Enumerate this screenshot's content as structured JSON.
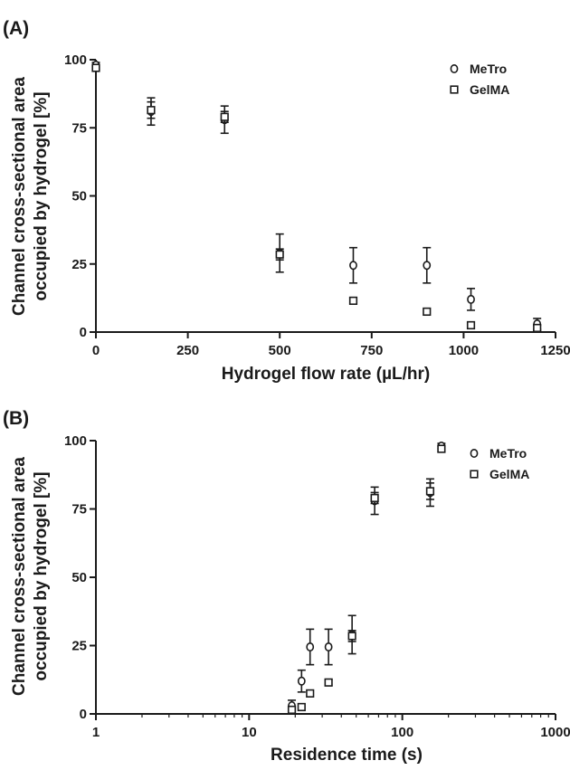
{
  "chart_data": [
    {
      "panel_label": "(A)",
      "type": "scatter",
      "xscale": "linear",
      "xlim": [
        0,
        1250
      ],
      "ylim": [
        0,
        100
      ],
      "xticks": [
        0,
        250,
        500,
        750,
        1000,
        1250
      ],
      "yticks": [
        0,
        25,
        50,
        75,
        100
      ],
      "xlabel": "Hydrogel flow rate (µL/hr)",
      "ylabel": [
        "Channel cross-sectional area",
        "occupied by hydrogel [%]"
      ],
      "legend_position": "top-right",
      "series": [
        {
          "name": "MeTro",
          "marker": "circle",
          "points": [
            {
              "x": 0,
              "y": 98,
              "err": 1
            },
            {
              "x": 150,
              "y": 81,
              "err": 5
            },
            {
              "x": 350,
              "y": 78,
              "err": 5
            },
            {
              "x": 500,
              "y": 29,
              "err": 7
            },
            {
              "x": 700,
              "y": 24.5,
              "err": 6.5
            },
            {
              "x": 900,
              "y": 24.5,
              "err": 6.5
            },
            {
              "x": 1020,
              "y": 12,
              "err": 4
            },
            {
              "x": 1200,
              "y": 3,
              "err": 2
            }
          ]
        },
        {
          "name": "GelMA",
          "marker": "square",
          "points": [
            {
              "x": 0,
              "y": 97,
              "err": 1
            },
            {
              "x": 150,
              "y": 81.5,
              "err": 3
            },
            {
              "x": 350,
              "y": 79,
              "err": 2
            },
            {
              "x": 500,
              "y": 28.5,
              "err": 2
            },
            {
              "x": 700,
              "y": 11.5,
              "err": 1
            },
            {
              "x": 900,
              "y": 7.5,
              "err": 0
            },
            {
              "x": 1020,
              "y": 2.5,
              "err": 0
            },
            {
              "x": 1200,
              "y": 1.5,
              "err": 1
            }
          ]
        }
      ]
    },
    {
      "panel_label": "(B)",
      "type": "scatter",
      "xscale": "log",
      "xlim": [
        1,
        1000
      ],
      "ylim": [
        0,
        100
      ],
      "xticks": [
        1,
        10,
        100,
        1000
      ],
      "yticks": [
        0,
        25,
        50,
        75,
        100
      ],
      "xlabel": "Residence time (s)",
      "ylabel": [
        "Channel cross-sectional area",
        "occupied by hydrogel [%]"
      ],
      "legend_position": "top-right",
      "series": [
        {
          "name": "MeTro",
          "marker": "circle",
          "points": [
            {
              "x": 180,
              "y": 98,
              "err": 1
            },
            {
              "x": 152,
              "y": 81,
              "err": 5
            },
            {
              "x": 66,
              "y": 78,
              "err": 5
            },
            {
              "x": 47,
              "y": 29,
              "err": 7
            },
            {
              "x": 33,
              "y": 24.5,
              "err": 6.5
            },
            {
              "x": 25,
              "y": 24.5,
              "err": 6.5
            },
            {
              "x": 22,
              "y": 12,
              "err": 4
            },
            {
              "x": 19,
              "y": 3,
              "err": 2
            }
          ]
        },
        {
          "name": "GelMA",
          "marker": "square",
          "points": [
            {
              "x": 180,
              "y": 97,
              "err": 1
            },
            {
              "x": 152,
              "y": 81.5,
              "err": 3
            },
            {
              "x": 66,
              "y": 79,
              "err": 2
            },
            {
              "x": 47,
              "y": 28.5,
              "err": 2
            },
            {
              "x": 33,
              "y": 11.5,
              "err": 1
            },
            {
              "x": 25,
              "y": 7.5,
              "err": 0
            },
            {
              "x": 22,
              "y": 2.5,
              "err": 0
            },
            {
              "x": 19,
              "y": 1.5,
              "err": 1
            }
          ]
        }
      ]
    }
  ]
}
